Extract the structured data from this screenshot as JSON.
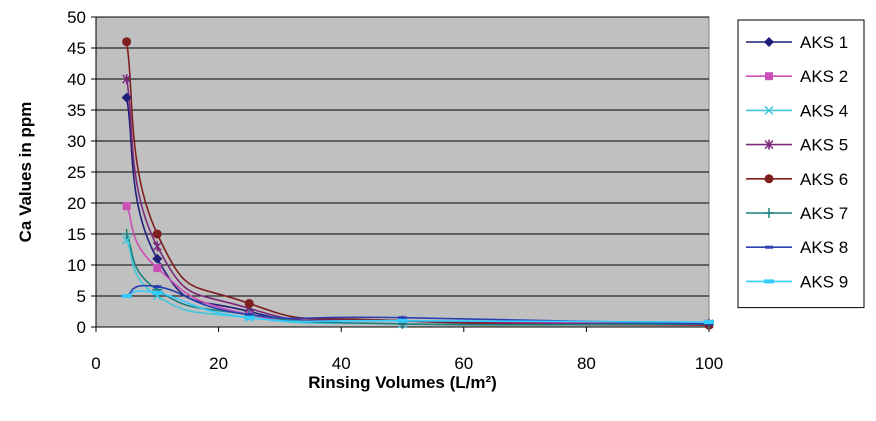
{
  "chart_data": {
    "type": "line",
    "title": "",
    "xlabel": "Rinsing Volumes (L/m²)",
    "ylabel": "Ca Values in ppm",
    "xlim": [
      0,
      100
    ],
    "ylim": [
      0,
      50
    ],
    "xticks": [
      "0",
      "20",
      "40",
      "60",
      "80",
      "100"
    ],
    "yticks": [
      "0",
      "5",
      "10",
      "15",
      "20",
      "25",
      "30",
      "35",
      "40",
      "45",
      "50"
    ],
    "x": [
      5,
      10,
      25,
      50,
      100
    ],
    "grid": "horizontal",
    "plot_background": "#c0c0c0",
    "legend_position": "right",
    "series": [
      {
        "name": "AKS 1",
        "values": [
          37,
          11,
          2.5,
          1,
          0.5
        ],
        "color": "#1f1f7a",
        "marker": "diamond"
      },
      {
        "name": "AKS 2",
        "values": [
          19.5,
          9.5,
          2,
          1,
          0.5
        ],
        "color": "#cc4fb8",
        "marker": "square"
      },
      {
        "name": "AKS 4",
        "values": [
          14,
          5,
          1.5,
          0.5,
          0.5
        ],
        "color": "#3fc8dc",
        "marker": "x"
      },
      {
        "name": "AKS 5",
        "values": [
          40,
          13,
          3,
          1,
          0.5
        ],
        "color": "#7a2a7a",
        "marker": "star"
      },
      {
        "name": "AKS 6",
        "values": [
          46,
          15,
          3.8,
          1,
          0.3
        ],
        "color": "#7f1f1f",
        "marker": "circle"
      },
      {
        "name": "AKS 7",
        "values": [
          15,
          6,
          2,
          0.5,
          0.5
        ],
        "color": "#1f8080",
        "marker": "plus"
      },
      {
        "name": "AKS 8",
        "values": [
          5,
          6.5,
          2,
          1.5,
          0.5
        ],
        "color": "#2a3fb0",
        "marker": "dash"
      },
      {
        "name": "AKS 9",
        "values": [
          5,
          5.5,
          1.5,
          1,
          0.8
        ],
        "color": "#33ccff",
        "marker": "bar"
      }
    ]
  }
}
